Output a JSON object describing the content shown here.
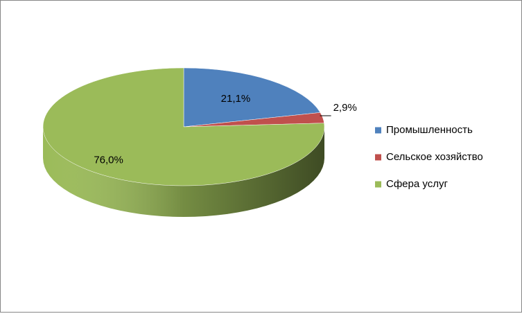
{
  "chart_data": {
    "type": "pie3d",
    "categories": [
      "Промышленность",
      "Сельское хозяйство",
      "Сфера услуг"
    ],
    "values": [
      21.1,
      2.9,
      76.0
    ],
    "value_labels": [
      "21,1%",
      "2,9%",
      "76,0%"
    ],
    "colors": [
      "#4f81bd",
      "#c0504d",
      "#9bbb59"
    ],
    "legend": "right"
  }
}
